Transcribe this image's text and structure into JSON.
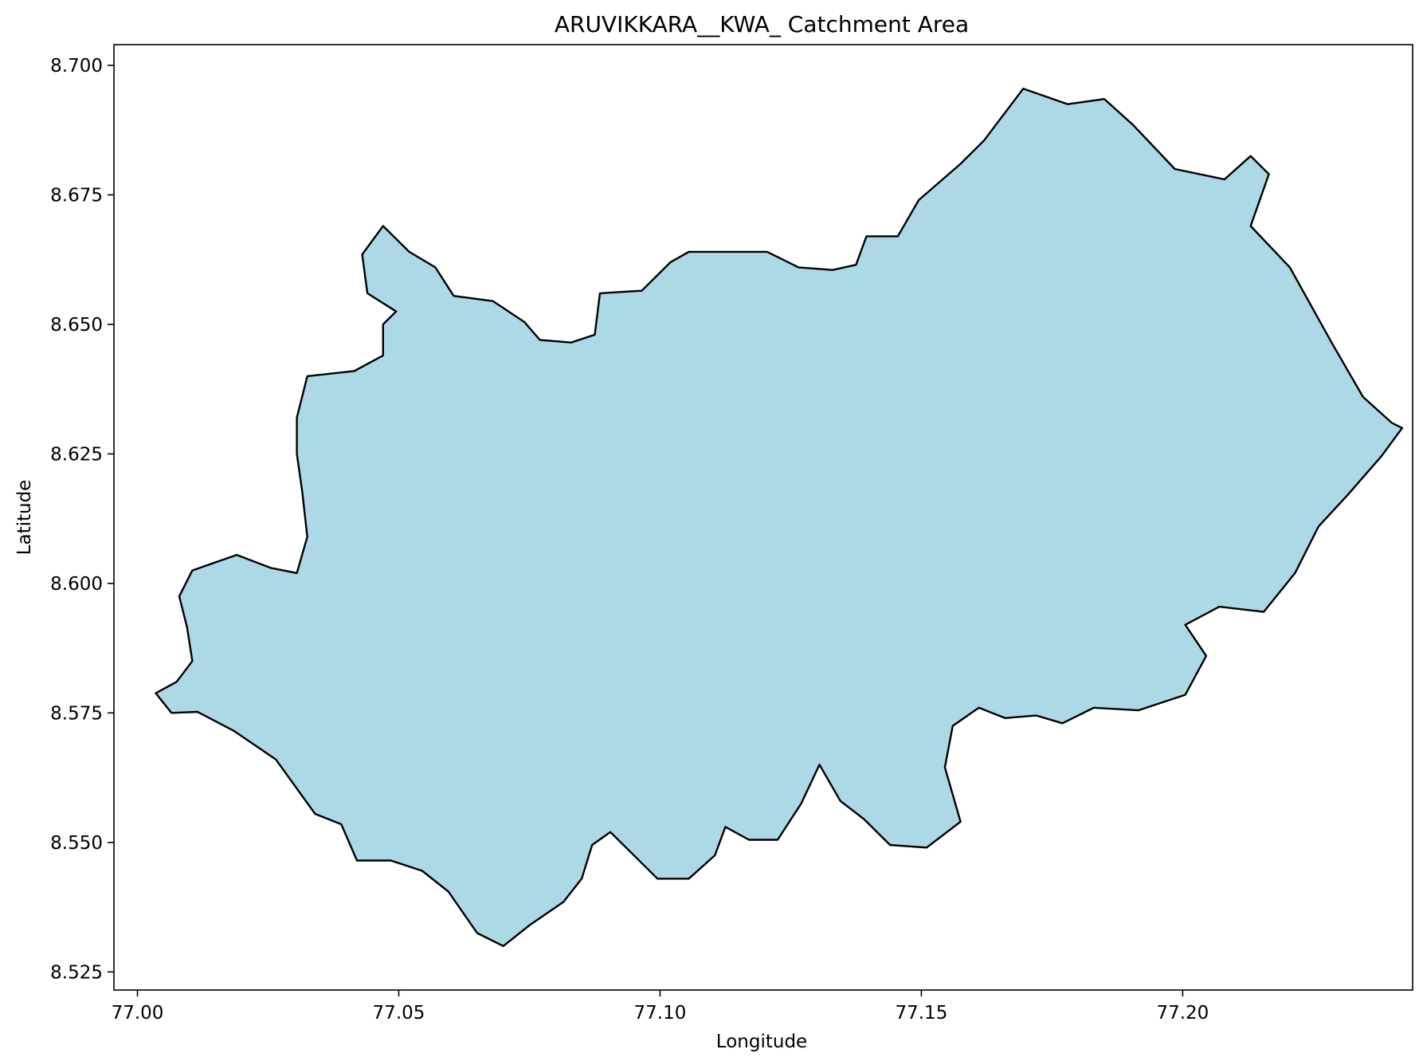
{
  "chart_data": {
    "type": "map",
    "title": "ARUVIKKARA__KWA_ Catchment Area",
    "xlabel": "Longitude",
    "ylabel": "Latitude",
    "xlim": [
      76.9955,
      77.244
    ],
    "ylim": [
      8.5215,
      8.704
    ],
    "xticks": [
      77.0,
      77.05,
      77.1,
      77.15,
      77.2
    ],
    "xtick_labels": [
      "77.00",
      "77.05",
      "77.10",
      "77.15",
      "77.20"
    ],
    "yticks": [
      8.525,
      8.55,
      8.575,
      8.6,
      8.625,
      8.65,
      8.675,
      8.7
    ],
    "ytick_labels": [
      "8.525",
      "8.550",
      "8.575",
      "8.600",
      "8.625",
      "8.650",
      "8.675",
      "8.700"
    ],
    "grid": false,
    "fill_color": "#add8e6",
    "edge_color": "#000000",
    "boundary": [
      [
        77.0035,
        8.5788
      ],
      [
        77.0075,
        8.581
      ],
      [
        77.0105,
        8.585
      ],
      [
        77.0095,
        8.5915
      ],
      [
        77.008,
        8.5975
      ],
      [
        77.0105,
        8.6025
      ],
      [
        77.019,
        8.6055
      ],
      [
        77.0255,
        8.603
      ],
      [
        77.0305,
        8.602
      ],
      [
        77.0325,
        8.609
      ],
      [
        77.0315,
        8.618
      ],
      [
        77.0305,
        8.625
      ],
      [
        77.0305,
        8.632
      ],
      [
        77.0325,
        8.64
      ],
      [
        77.037,
        8.6405
      ],
      [
        77.0415,
        8.641
      ],
      [
        77.047,
        8.644
      ],
      [
        77.047,
        8.65
      ],
      [
        77.0495,
        8.6525
      ],
      [
        77.044,
        8.656
      ],
      [
        77.043,
        8.6635
      ],
      [
        77.047,
        8.669
      ],
      [
        77.052,
        8.664
      ],
      [
        77.057,
        8.661
      ],
      [
        77.0605,
        8.6555
      ],
      [
        77.068,
        8.6545
      ],
      [
        77.074,
        8.6505
      ],
      [
        77.077,
        8.647
      ],
      [
        77.083,
        8.6465
      ],
      [
        77.0875,
        8.648
      ],
      [
        77.0885,
        8.656
      ],
      [
        77.0965,
        8.6565
      ],
      [
        77.102,
        8.662
      ],
      [
        77.1055,
        8.664
      ],
      [
        77.1135,
        8.664
      ],
      [
        77.1205,
        8.664
      ],
      [
        77.1265,
        8.661
      ],
      [
        77.133,
        8.6605
      ],
      [
        77.1375,
        8.6615
      ],
      [
        77.1395,
        8.667
      ],
      [
        77.1455,
        8.667
      ],
      [
        77.1495,
        8.674
      ],
      [
        77.1575,
        8.681
      ],
      [
        77.162,
        8.6855
      ],
      [
        77.1695,
        8.6955
      ],
      [
        77.178,
        8.6925
      ],
      [
        77.185,
        8.6935
      ],
      [
        77.1905,
        8.6885
      ],
      [
        77.1985,
        8.68
      ],
      [
        77.208,
        8.678
      ],
      [
        77.213,
        8.6825
      ],
      [
        77.2165,
        8.679
      ],
      [
        77.213,
        8.669
      ],
      [
        77.2205,
        8.661
      ],
      [
        77.2285,
        8.6465
      ],
      [
        77.2345,
        8.636
      ],
      [
        77.24,
        8.631
      ],
      [
        77.242,
        8.63
      ],
      [
        77.238,
        8.6245
      ],
      [
        77.2315,
        8.617
      ],
      [
        77.226,
        8.611
      ],
      [
        77.2215,
        8.602
      ],
      [
        77.2155,
        8.5945
      ],
      [
        77.207,
        8.5955
      ],
      [
        77.2005,
        8.592
      ],
      [
        77.2045,
        8.586
      ],
      [
        77.2005,
        8.5785
      ],
      [
        77.1915,
        8.5755
      ],
      [
        77.183,
        8.576
      ],
      [
        77.177,
        8.573
      ],
      [
        77.172,
        8.5745
      ],
      [
        77.166,
        8.574
      ],
      [
        77.161,
        8.576
      ],
      [
        77.156,
        8.5725
      ],
      [
        77.1545,
        8.5645
      ],
      [
        77.1575,
        8.554
      ],
      [
        77.151,
        8.549
      ],
      [
        77.144,
        8.5495
      ],
      [
        77.139,
        8.5545
      ],
      [
        77.1345,
        8.558
      ],
      [
        77.1305,
        8.565
      ],
      [
        77.127,
        8.5575
      ],
      [
        77.1225,
        8.5505
      ],
      [
        77.117,
        8.5505
      ],
      [
        77.1125,
        8.553
      ],
      [
        77.1105,
        8.5475
      ],
      [
        77.1055,
        8.543
      ],
      [
        77.0995,
        8.543
      ],
      [
        77.0945,
        8.548
      ],
      [
        77.0905,
        8.552
      ],
      [
        77.087,
        8.5495
      ],
      [
        77.085,
        8.543
      ],
      [
        77.0815,
        8.5385
      ],
      [
        77.075,
        8.534
      ],
      [
        77.07,
        8.53
      ],
      [
        77.065,
        8.5325
      ],
      [
        77.0595,
        8.5405
      ],
      [
        77.0545,
        8.5445
      ],
      [
        77.0485,
        8.5465
      ],
      [
        77.042,
        8.5465
      ],
      [
        77.039,
        8.5535
      ],
      [
        77.034,
        8.5555
      ],
      [
        77.0265,
        8.566
      ],
      [
        77.0185,
        8.5715
      ],
      [
        77.0115,
        8.5752
      ],
      [
        77.0065,
        8.575
      ],
      [
        77.0035,
        8.5788
      ]
    ]
  }
}
